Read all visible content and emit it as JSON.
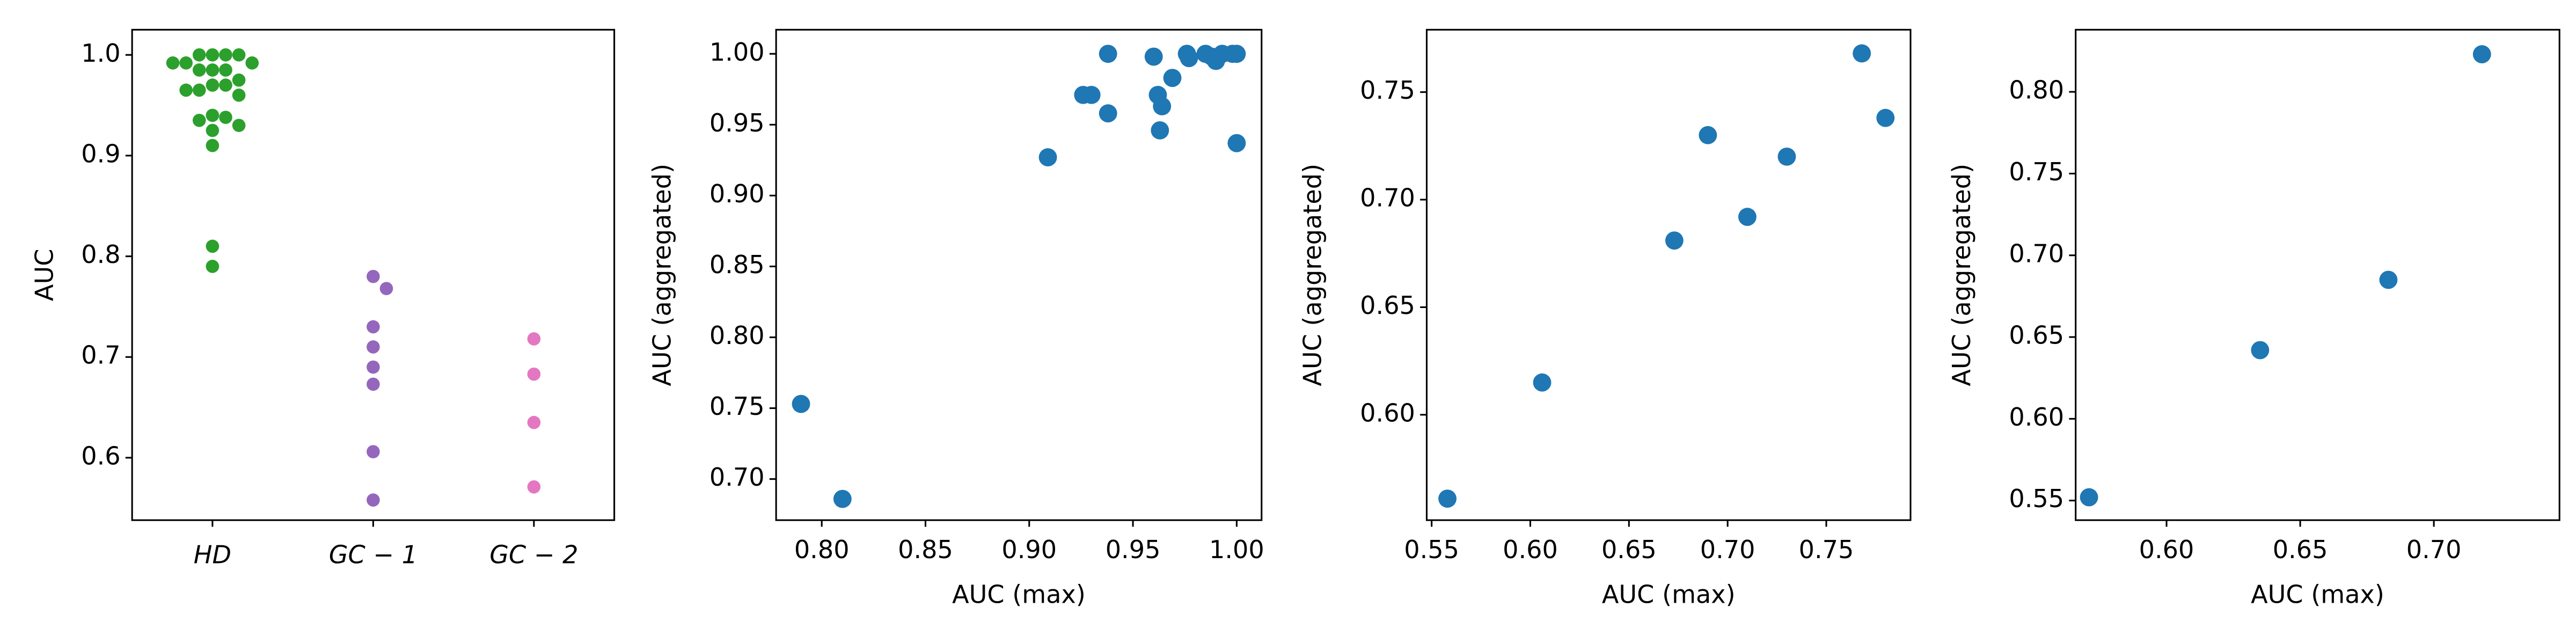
{
  "chart_data": [
    {
      "type": "strip",
      "ylabel": "AUC",
      "categories": [
        "HD",
        "GC − 1",
        "GC − 2"
      ],
      "colors": [
        "#2ca02c",
        "#9467bd",
        "#e377c2"
      ],
      "values": [
        [
          1.0,
          1.0,
          1.0,
          1.0,
          0.992,
          0.992,
          0.992,
          0.985,
          0.985,
          0.985,
          0.975,
          0.97,
          0.97,
          0.965,
          0.965,
          0.96,
          0.94,
          0.938,
          0.935,
          0.93,
          0.925,
          0.91,
          0.81,
          0.79
        ],
        [
          0.78,
          0.768,
          0.73,
          0.71,
          0.69,
          0.673,
          0.606,
          0.558
        ],
        [
          0.718,
          0.683,
          0.635,
          0.571
        ]
      ],
      "ylim": [
        0.538,
        1.025
      ],
      "yticks": [
        0.6,
        0.7,
        0.8,
        0.9,
        {
          "value": 1.0,
          "label": "1.0"
        }
      ]
    },
    {
      "type": "scatter",
      "xlabel": "AUC (max)",
      "ylabel": "AUC (aggregated)",
      "color": "#1f77b4",
      "x": [
        0.79,
        0.81,
        0.909,
        0.926,
        0.93,
        0.938,
        0.938,
        0.96,
        0.962,
        0.963,
        0.964,
        0.969,
        0.976,
        0.977,
        0.985,
        0.988,
        0.99,
        0.993,
        1.0,
        0.998,
        1.0
      ],
      "values": [
        0.753,
        0.686,
        0.927,
        0.971,
        0.971,
        1.0,
        0.958,
        0.998,
        0.971,
        0.946,
        0.963,
        0.983,
        1.0,
        0.997,
        1.0,
        0.998,
        0.995,
        1.0,
        1.0,
        1.0,
        0.937
      ],
      "xlim": [
        0.778,
        1.012
      ],
      "ylim": [
        0.671,
        1.017
      ],
      "xticks": [
        {
          "value": 0.8,
          "label": "0.80"
        },
        0.85,
        {
          "value": 0.9,
          "label": "0.90"
        },
        0.95,
        {
          "value": 1.0,
          "label": "1.00"
        }
      ],
      "yticks": [
        {
          "value": 0.7,
          "label": "0.70"
        },
        0.75,
        {
          "value": 0.8,
          "label": "0.80"
        },
        0.85,
        {
          "value": 0.9,
          "label": "0.90"
        },
        0.95,
        {
          "value": 1.0,
          "label": "1.00"
        }
      ]
    },
    {
      "type": "scatter",
      "xlabel": "AUC (max)",
      "ylabel": "AUC (aggregated)",
      "color": "#1f77b4",
      "x": [
        0.558,
        0.606,
        0.673,
        0.69,
        0.71,
        0.73,
        0.768,
        0.78
      ],
      "values": [
        0.561,
        0.615,
        0.681,
        0.73,
        0.692,
        0.72,
        0.768,
        0.738
      ],
      "xlim": [
        0.5475,
        0.7927
      ],
      "ylim": [
        0.551,
        0.779
      ],
      "xticks": [
        0.55,
        {
          "value": 0.6,
          "label": "0.60"
        },
        0.65,
        {
          "value": 0.7,
          "label": "0.70"
        },
        0.75
      ],
      "yticks": [
        {
          "value": 0.6,
          "label": "0.60"
        },
        0.65,
        {
          "value": 0.7,
          "label": "0.70"
        },
        0.75
      ]
    },
    {
      "type": "scatter",
      "xlabel": "AUC (max)",
      "ylabel": "AUC (aggregated)",
      "color": "#1f77b4",
      "x": [
        0.571,
        0.635,
        0.683,
        0.718
      ],
      "values": [
        0.552,
        0.642,
        0.685,
        0.823
      ],
      "xlim": [
        0.566,
        0.747
      ],
      "ylim": [
        0.538,
        0.838
      ],
      "xticks": [
        {
          "value": 0.6,
          "label": "0.60"
        },
        0.65,
        {
          "value": 0.7,
          "label": "0.70"
        }
      ],
      "yticks": [
        0.55,
        {
          "value": 0.6,
          "label": "0.60"
        },
        0.65,
        {
          "value": 0.7,
          "label": "0.70"
        },
        0.75,
        {
          "value": 0.8,
          "label": "0.80"
        }
      ]
    }
  ]
}
